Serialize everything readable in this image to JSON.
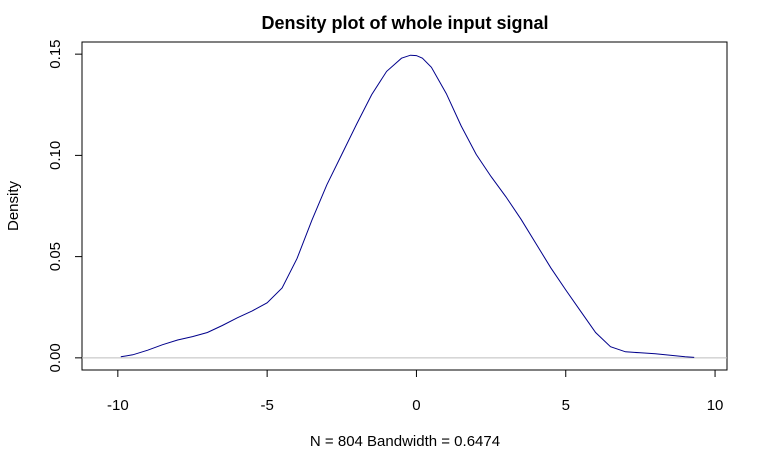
{
  "chart_data": {
    "type": "line",
    "title": "Density plot of whole input signal",
    "xlabel": "N = 804   Bandwidth = 0.6474",
    "ylabel": "Density",
    "xlim": [
      -11.2,
      10.4
    ],
    "ylim": [
      -0.006,
      0.156
    ],
    "xticks": [
      -10,
      -5,
      0,
      5,
      10
    ],
    "xtick_labels": [
      "-10",
      "-5",
      "0",
      "5",
      "10"
    ],
    "yticks": [
      0.0,
      0.05,
      0.1,
      0.15
    ],
    "ytick_labels": [
      "0.00",
      "0.05",
      "0.10",
      "0.15"
    ],
    "grid": false,
    "legend": "none",
    "baseline": 0,
    "series": [
      {
        "color": "#00008b",
        "x": [
          -9.9,
          -9.5,
          -9.0,
          -8.5,
          -8.0,
          -7.5,
          -7.0,
          -6.5,
          -6.0,
          -5.5,
          -5.0,
          -4.5,
          -4.0,
          -3.5,
          -3.0,
          -2.5,
          -2.0,
          -1.5,
          -1.0,
          -0.5,
          -0.2,
          0.0,
          0.2,
          0.5,
          1.0,
          1.5,
          2.0,
          2.5,
          3.0,
          3.5,
          4.0,
          4.5,
          5.0,
          5.5,
          6.0,
          6.5,
          7.0,
          7.5,
          8.0,
          8.5,
          9.0,
          9.3
        ],
        "values": [
          0.0005,
          0.0015,
          0.0038,
          0.0065,
          0.0088,
          0.0105,
          0.0125,
          0.016,
          0.0198,
          0.0232,
          0.0272,
          0.0345,
          0.049,
          0.068,
          0.0855,
          0.1005,
          0.1155,
          0.13,
          0.1415,
          0.148,
          0.1495,
          0.1493,
          0.148,
          0.1435,
          0.1305,
          0.1145,
          0.1005,
          0.0895,
          0.0795,
          0.0685,
          0.0565,
          0.0445,
          0.0335,
          0.023,
          0.0125,
          0.0055,
          0.003,
          0.0025,
          0.002,
          0.0013,
          0.0005,
          0.0002
        ]
      }
    ],
    "colors": {
      "line": "#00008b",
      "baseline": "#bebebe",
      "axis": "#000000"
    }
  }
}
